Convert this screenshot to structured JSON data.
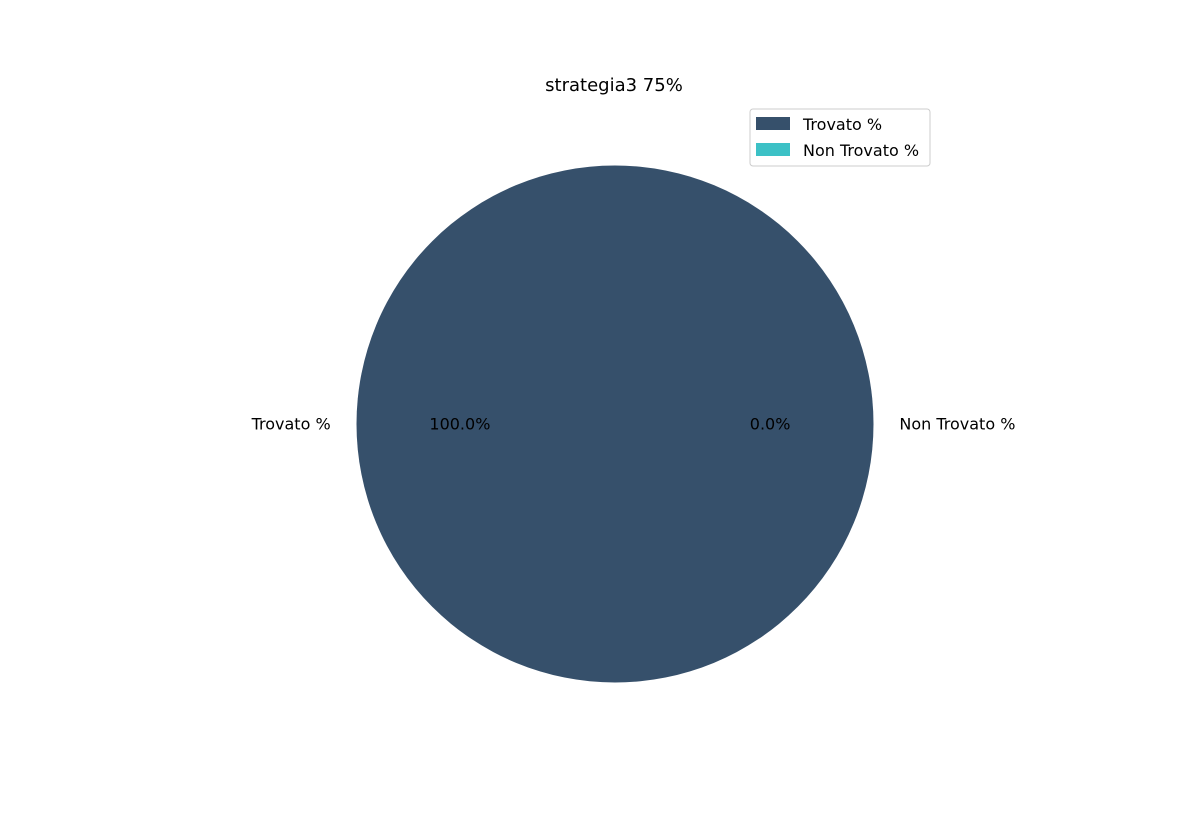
{
  "chart_data": {
    "type": "pie",
    "title": "strategia3 75%",
    "slices": [
      {
        "label": "Trovato %",
        "value": 100.0,
        "pct_label": "100.0%",
        "color": "#36506b"
      },
      {
        "label": "Non Trovato %",
        "value": 0.0,
        "pct_label": "0.0%",
        "color": "#3cc1c6"
      }
    ],
    "legend": {
      "placement": "top-right",
      "items": [
        {
          "label": "Trovato %",
          "color": "#36506b"
        },
        {
          "label": "Non Trovato %",
          "color": "#3cc1c6"
        }
      ]
    }
  }
}
